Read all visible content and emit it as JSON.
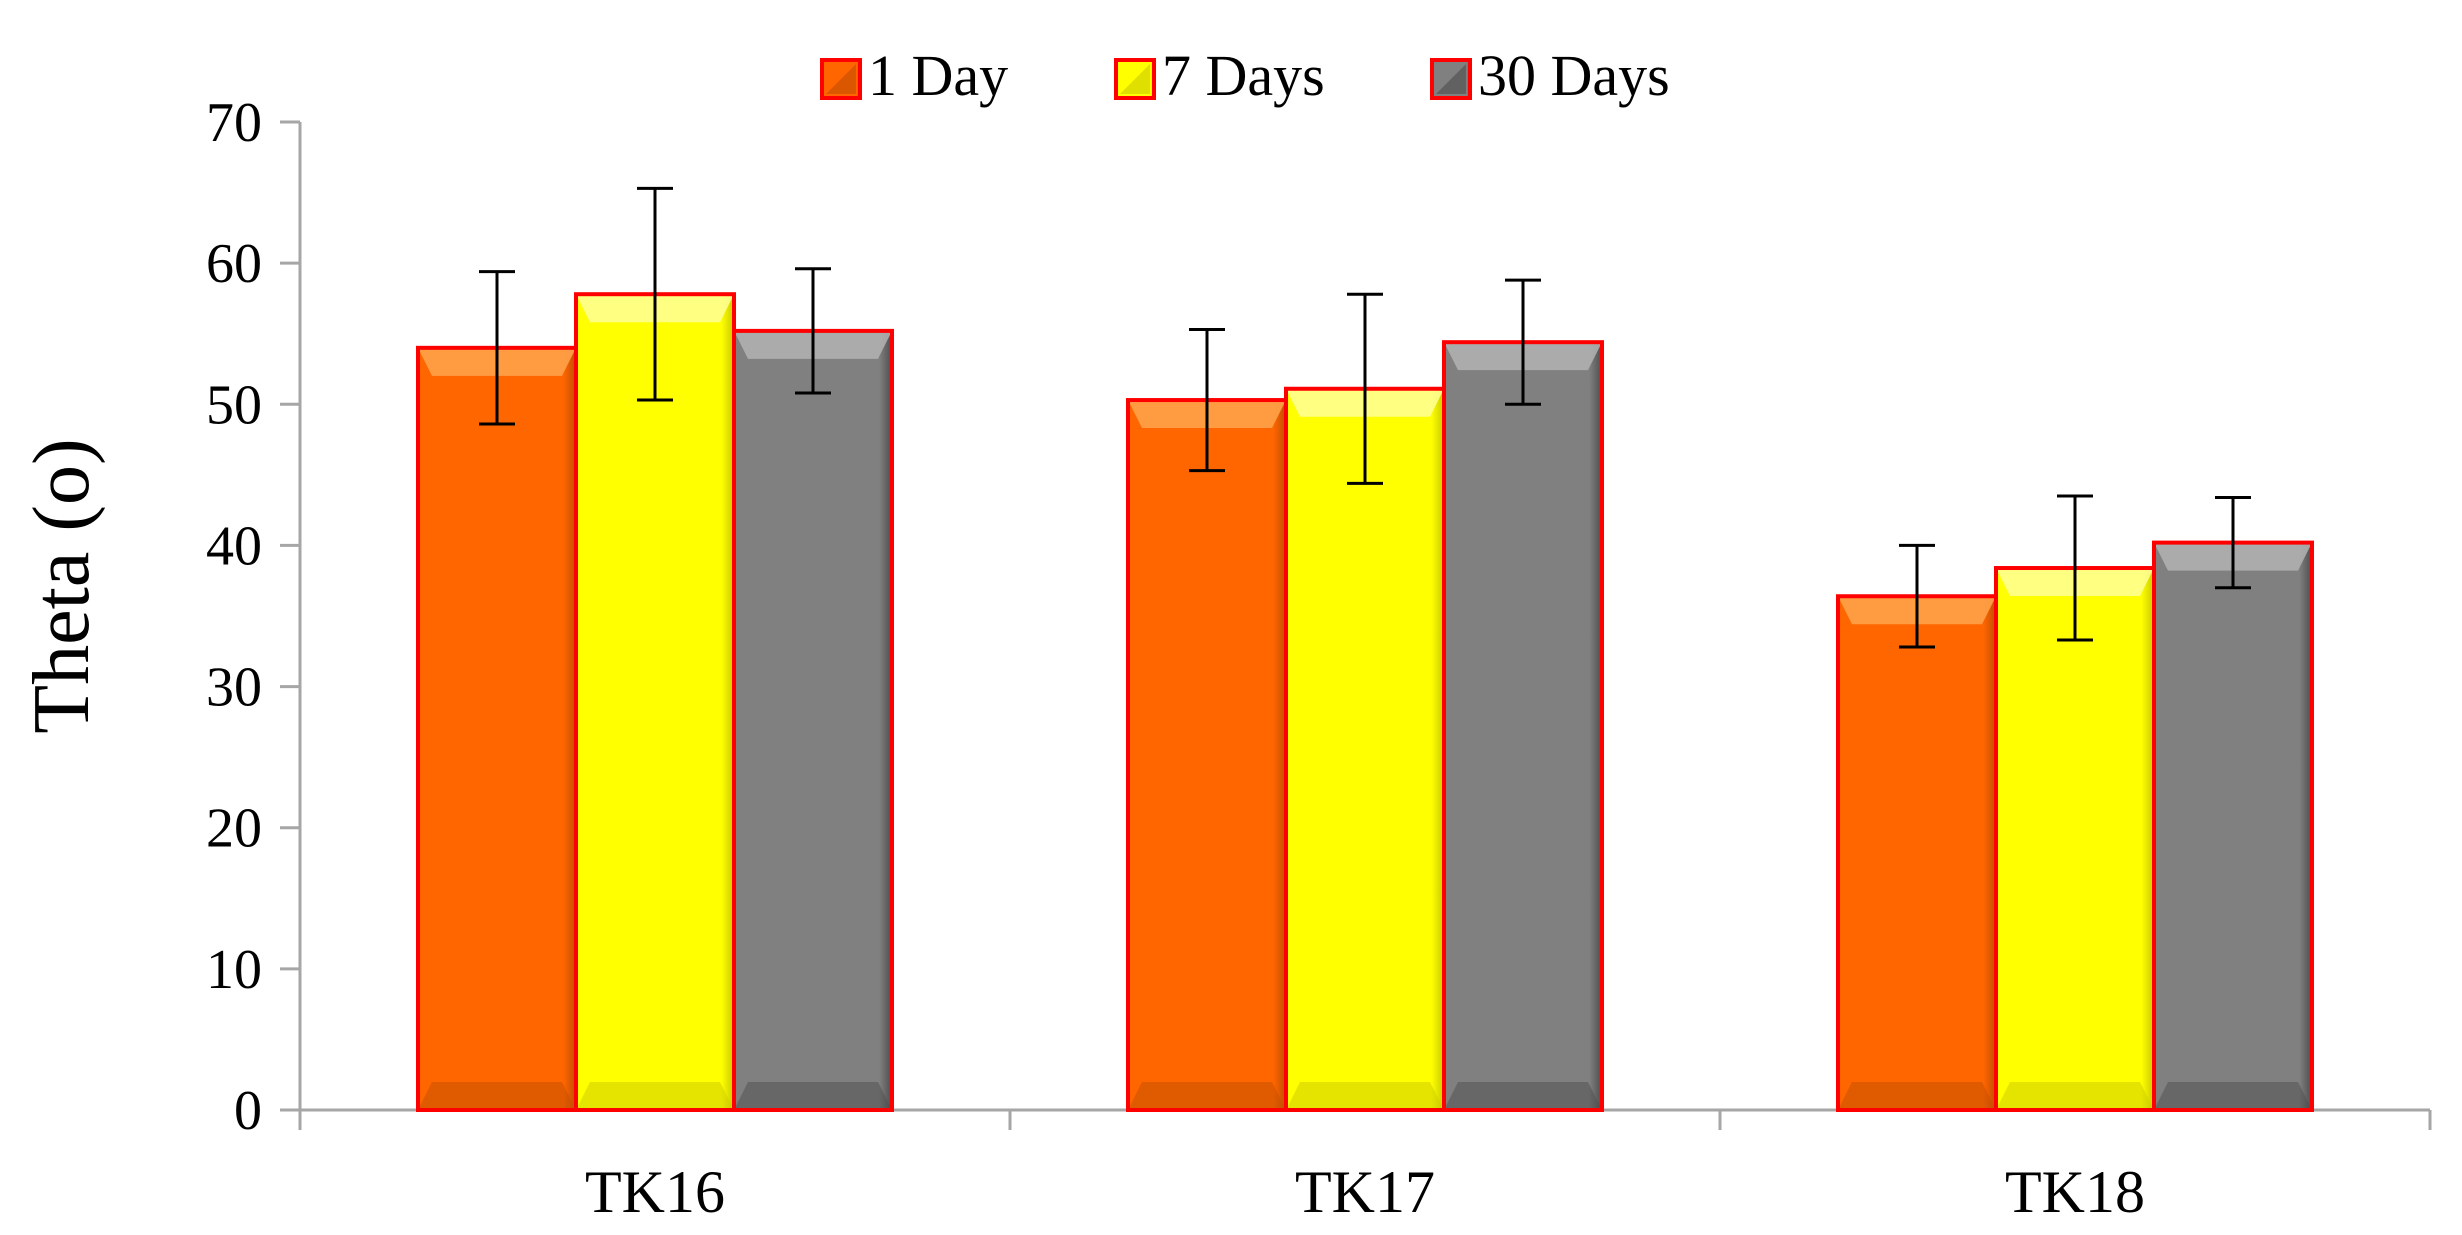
{
  "chart_data": {
    "type": "bar",
    "title": "",
    "xlabel": "",
    "ylabel": "Theta (o)",
    "ylim": [
      0,
      70
    ],
    "yticks": [
      0,
      10,
      20,
      30,
      40,
      50,
      60,
      70
    ],
    "grid": false,
    "legend_position": "top-center",
    "categories": [
      "TK16",
      "TK17",
      "TK18"
    ],
    "series": [
      {
        "name": "1 Day",
        "values": [
          54,
          50.3,
          36.4
        ],
        "errors": [
          5.4,
          5.0,
          3.6
        ],
        "color": "#ff6600",
        "highlight": "#ffa64d",
        "shadow": "#c24d00"
      },
      {
        "name": "7 Days",
        "values": [
          57.8,
          51.1,
          38.4
        ],
        "errors": [
          7.5,
          6.7,
          5.1
        ],
        "color": "#ffff00",
        "highlight": "#ffff99",
        "shadow": "#c9c900"
      },
      {
        "name": "30 Days",
        "values": [
          55.2,
          54.4,
          40.2
        ],
        "errors": [
          4.4,
          4.4,
          3.2
        ],
        "color": "#808080",
        "highlight": "#b3b3b3",
        "shadow": "#4d4d4d"
      }
    ],
    "bar_outline_color": "#ff0000",
    "axis_color": "#a6a6a6"
  }
}
